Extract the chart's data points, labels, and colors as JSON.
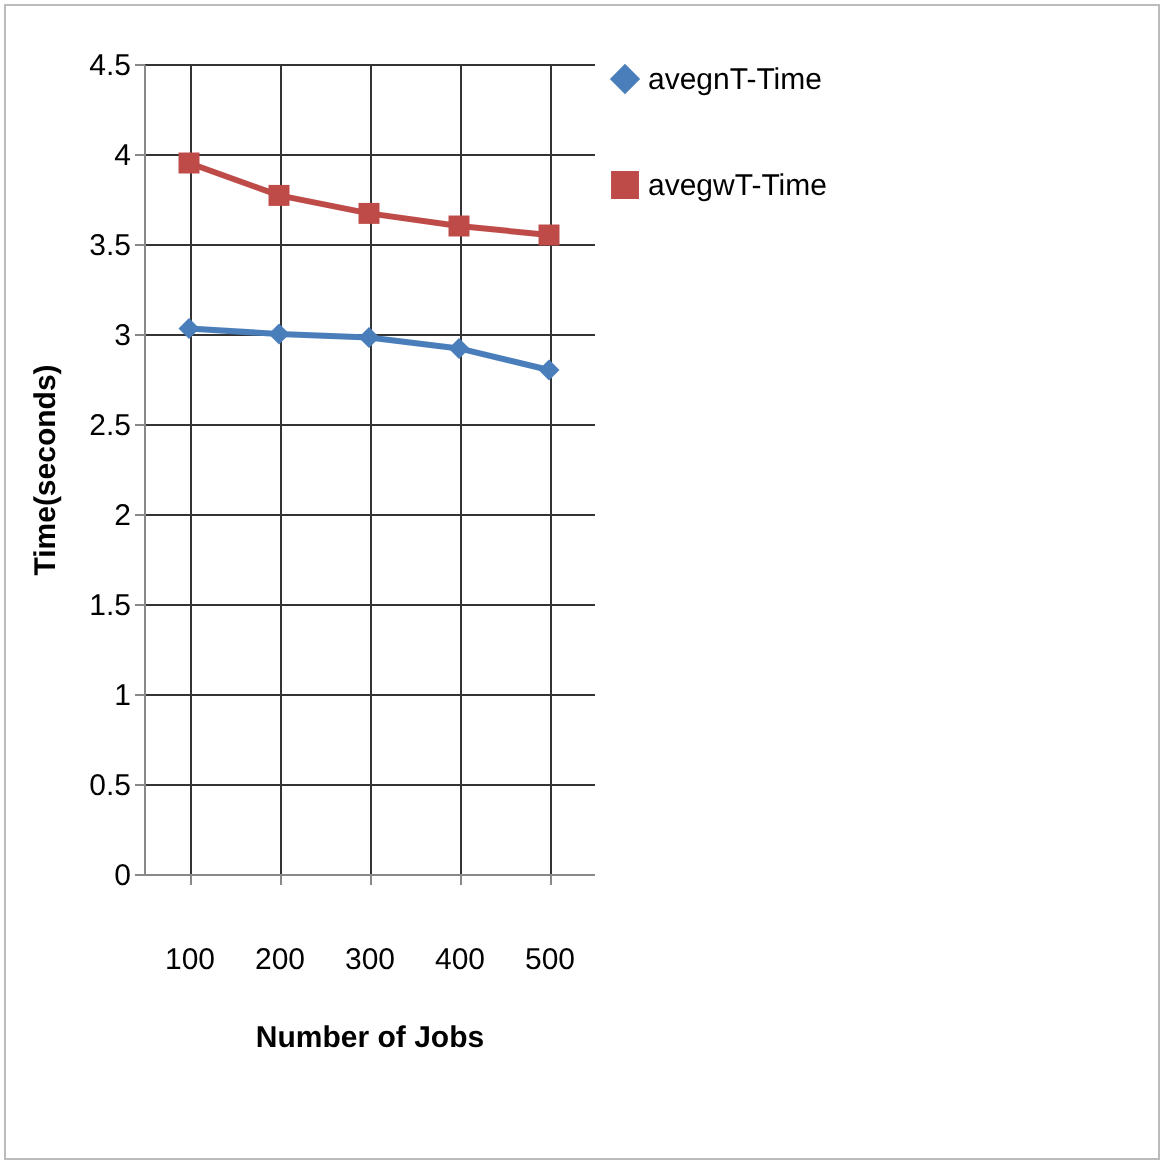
{
  "chart_data": {
    "type": "line",
    "xlabel": "Number of Jobs",
    "ylabel": "Time(seconds)",
    "categories": [
      "100",
      "200",
      "300",
      "400",
      "500"
    ],
    "series": [
      {
        "name": "avegnT-Time",
        "color": "#4a7ebb",
        "marker": "diamond",
        "values": [
          3.03,
          3.0,
          2.98,
          2.92,
          2.8
        ]
      },
      {
        "name": "avegwT-Time",
        "color": "#be4b48",
        "marker": "square",
        "values": [
          3.95,
          3.77,
          3.67,
          3.6,
          3.55
        ]
      }
    ],
    "ylim": [
      0,
      4.5
    ],
    "yticks": [
      0,
      0.5,
      1,
      1.5,
      2,
      2.5,
      3,
      3.5,
      4,
      4.5
    ],
    "grid": true,
    "legend": "right"
  }
}
